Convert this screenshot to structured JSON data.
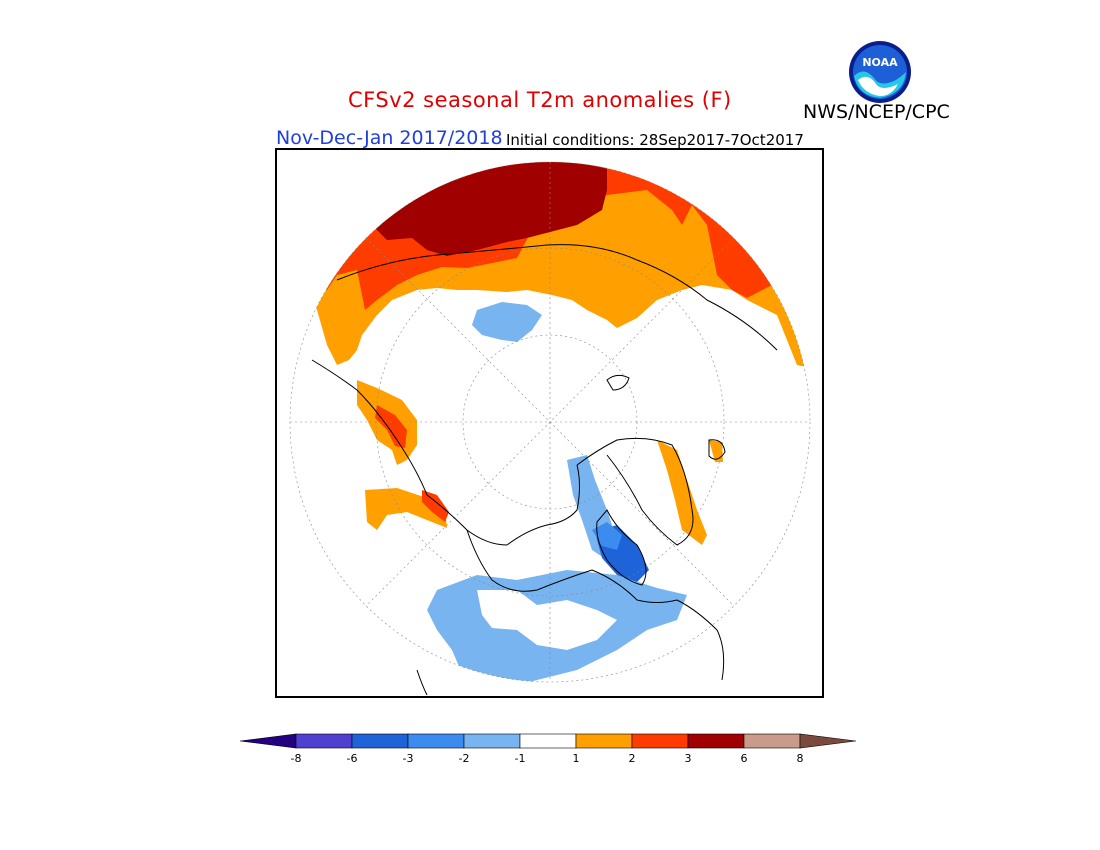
{
  "header": {
    "title": "CFSv2 seasonal T2m anomalies (F)",
    "agency": "NWS/NCEP/CPC",
    "season": "Nov-Dec-Jan 2017/2018",
    "initial_conditions": "Initial conditions: 28Sep2017-7Oct2017",
    "logo_text": "NOAA"
  },
  "colors": {
    "title": "#e00000",
    "season": "#1f3fdf"
  },
  "colorbar": {
    "colors": [
      "#240080",
      "#5040d0",
      "#1e64d8",
      "#3c8cf0",
      "#78b4f0",
      "#ffffff",
      "#ffa000",
      "#ff3c00",
      "#a00000",
      "#c89b8a",
      "#7a4a3c"
    ],
    "tick_labels": [
      "-8",
      "-6",
      "-3",
      "-2",
      "-1",
      "1",
      "2",
      "3",
      "6",
      "8"
    ]
  }
}
